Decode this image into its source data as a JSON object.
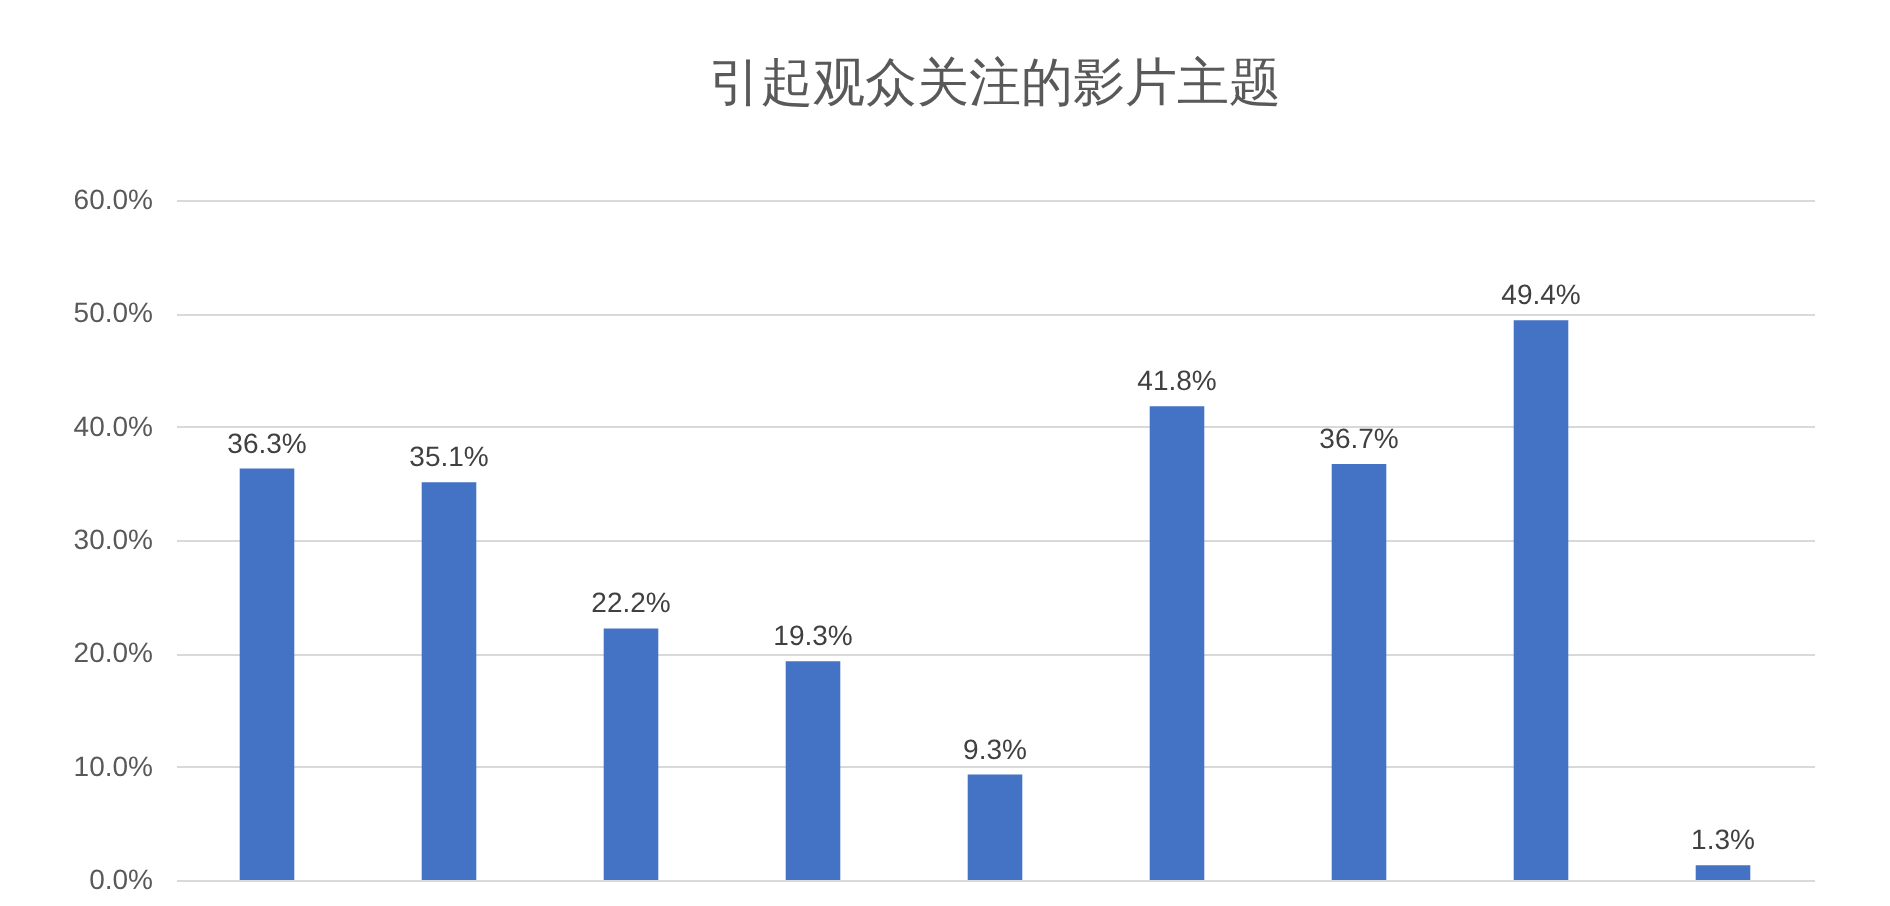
{
  "chart_data": {
    "type": "bar",
    "title": "引起观众关注的影片主题",
    "categories": [
      null,
      null,
      null,
      null,
      null,
      null,
      null,
      null,
      null
    ],
    "values": [
      36.3,
      35.1,
      22.2,
      19.3,
      9.3,
      41.8,
      36.7,
      49.4,
      1.3
    ],
    "value_labels": [
      "36.3%",
      "35.1%",
      "22.2%",
      "19.3%",
      "9.3%",
      "41.8%",
      "36.7%",
      "49.4%",
      "1.3%"
    ],
    "color": "#4472c4",
    "ylim": [
      0,
      60
    ],
    "yticks": [
      {
        "value": 0,
        "label": "0.0%"
      },
      {
        "value": 10,
        "label": "10.0%"
      },
      {
        "value": 20,
        "label": "20.0%"
      },
      {
        "value": 30,
        "label": "30.0%"
      },
      {
        "value": 40,
        "label": "40.0%"
      },
      {
        "value": 50,
        "label": "50.0%"
      },
      {
        "value": 60,
        "label": "60.0%"
      }
    ],
    "grid": "y",
    "tick_labels": "y"
  }
}
